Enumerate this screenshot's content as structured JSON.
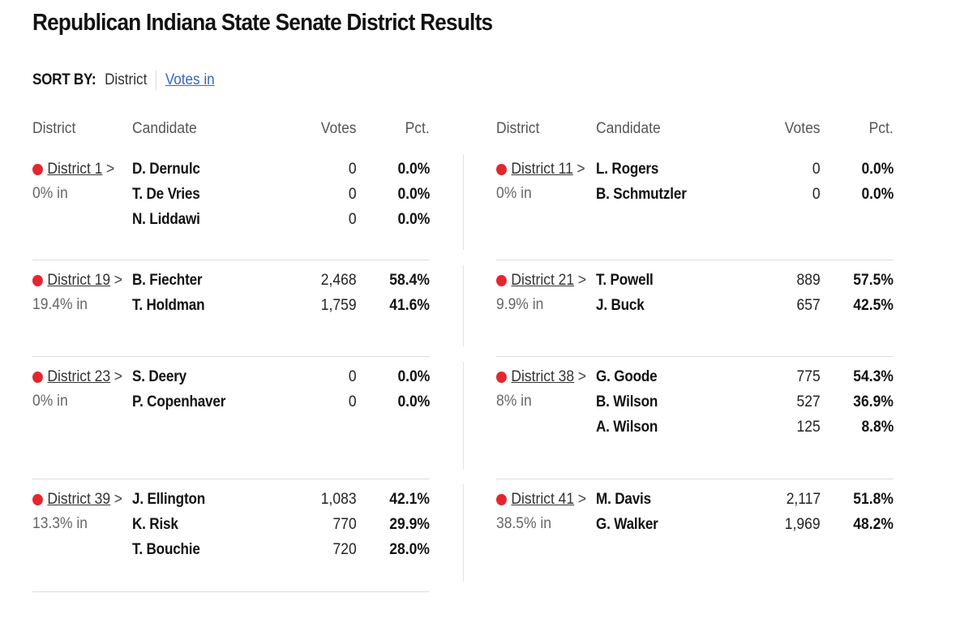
{
  "title": "Republican Indiana State Senate District Results",
  "sort": {
    "label": "SORT BY:",
    "district": "District",
    "votes_in": "Votes in"
  },
  "headers": {
    "district": "District",
    "candidate": "Candidate",
    "votes": "Votes",
    "pct": "Pct."
  },
  "colors": {
    "accent": "#e3262f",
    "link": "#3366cc"
  },
  "left": [
    {
      "district": "District 1",
      "chevron": ">",
      "pct_in": "0% in",
      "candidates": [
        {
          "name": "D. Dernulc",
          "votes": "0",
          "pct": "0.0%"
        },
        {
          "name": "T. De Vries",
          "votes": "0",
          "pct": "0.0%"
        },
        {
          "name": "N. Liddawi",
          "votes": "0",
          "pct": "0.0%"
        }
      ]
    },
    {
      "district": "District 19",
      "chevron": ">",
      "pct_in": "19.4% in",
      "candidates": [
        {
          "name": "B. Fiechter",
          "votes": "2,468",
          "pct": "58.4%"
        },
        {
          "name": "T. Holdman",
          "votes": "1,759",
          "pct": "41.6%"
        }
      ]
    },
    {
      "district": "District 23",
      "chevron": ">",
      "pct_in": "0% in",
      "candidates": [
        {
          "name": "S. Deery",
          "votes": "0",
          "pct": "0.0%"
        },
        {
          "name": "P. Copenhaver",
          "votes": "0",
          "pct": "0.0%"
        }
      ]
    },
    {
      "district": "District 39",
      "chevron": ">",
      "pct_in": "13.3% in",
      "candidates": [
        {
          "name": "J. Ellington",
          "votes": "1,083",
          "pct": "42.1%"
        },
        {
          "name": "K. Risk",
          "votes": "770",
          "pct": "29.9%"
        },
        {
          "name": "T. Bouchie",
          "votes": "720",
          "pct": "28.0%"
        }
      ]
    }
  ],
  "right": [
    {
      "district": "District 11",
      "chevron": ">",
      "pct_in": "0% in",
      "candidates": [
        {
          "name": "L. Rogers",
          "votes": "0",
          "pct": "0.0%"
        },
        {
          "name": "B. Schmutzler",
          "votes": "0",
          "pct": "0.0%"
        }
      ]
    },
    {
      "district": "District 21",
      "chevron": ">",
      "pct_in": "9.9% in",
      "candidates": [
        {
          "name": "T. Powell",
          "votes": "889",
          "pct": "57.5%"
        },
        {
          "name": "J. Buck",
          "votes": "657",
          "pct": "42.5%"
        }
      ]
    },
    {
      "district": "District 38",
      "chevron": ">",
      "pct_in": "8% in",
      "candidates": [
        {
          "name": "G. Goode",
          "votes": "775",
          "pct": "54.3%"
        },
        {
          "name": "B. Wilson",
          "votes": "527",
          "pct": "36.9%"
        },
        {
          "name": "A. Wilson",
          "votes": "125",
          "pct": "8.8%"
        }
      ]
    },
    {
      "district": "District 41",
      "chevron": ">",
      "pct_in": "38.5% in",
      "candidates": [
        {
          "name": "M. Davis",
          "votes": "2,117",
          "pct": "51.8%"
        },
        {
          "name": "G. Walker",
          "votes": "1,969",
          "pct": "48.2%"
        }
      ]
    }
  ]
}
